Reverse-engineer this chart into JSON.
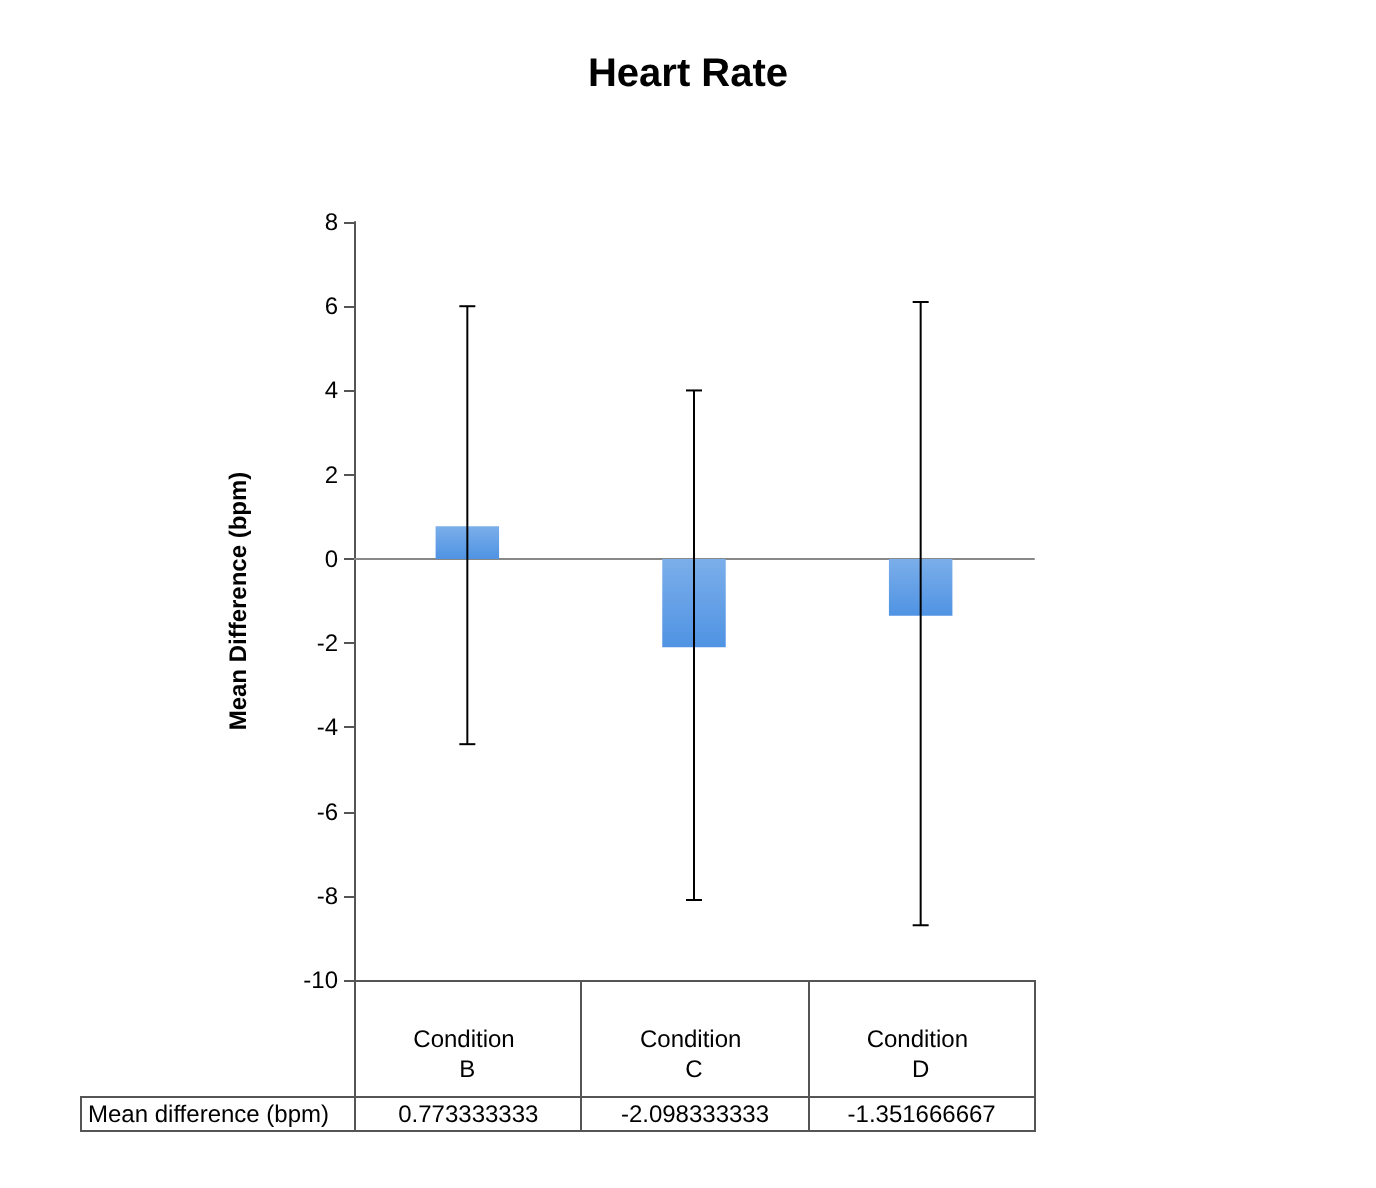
{
  "chart_data": {
    "type": "bar",
    "title": "Heart Rate",
    "ylabel": "Mean Difference (bpm)",
    "categories": [
      "Condition B",
      "Condition C",
      "Condition D"
    ],
    "values": [
      0.773333333,
      -2.098333333,
      -1.351666667
    ],
    "value_labels": [
      "0.773333333",
      "-2.098333333",
      "-1.351666667"
    ],
    "errors": [
      [
        -4.4,
        6.0
      ],
      [
        -8.1,
        4.0
      ],
      [
        -8.7,
        6.1
      ]
    ],
    "color": "#4f93e3",
    "annotations": [
      "Mean difference (bpm)"
    ],
    "ylim": [
      -10,
      8
    ],
    "yticks": [
      -10,
      -8,
      -6,
      -4,
      -2,
      0,
      2,
      4,
      6,
      8
    ],
    "grid": false
  }
}
